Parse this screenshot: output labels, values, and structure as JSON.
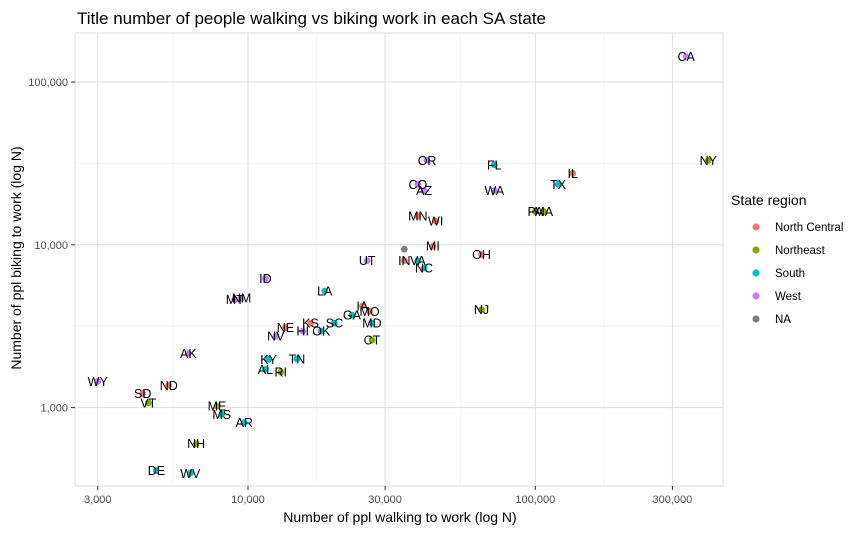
{
  "chart_data": {
    "type": "scatter",
    "title": "Title number of people walking vs biking  work in each SA state",
    "xlabel": "Number of ppl walking to work (log N)",
    "ylabel": "Number of ppl biking to work (log N)",
    "x_scale": "log10",
    "y_scale": "log10",
    "xlim": [
      2500,
      450000
    ],
    "ylim": [
      330,
      200000
    ],
    "x_ticks": [
      3000,
      10000,
      30000,
      100000,
      300000
    ],
    "x_tick_labels": [
      "3,000",
      "10,000",
      "30,000",
      "100,000",
      "300,000"
    ],
    "y_ticks": [
      1000,
      10000,
      100000
    ],
    "y_tick_labels": [
      "1,000",
      "10,000",
      "100,000"
    ],
    "grid": true,
    "legend": {
      "title": "State region",
      "placement": "right",
      "entries": [
        {
          "name": "North Central",
          "color": "#F8766D"
        },
        {
          "name": "Northeast",
          "color": "#7CAE00"
        },
        {
          "name": "South",
          "color": "#00BFC4"
        },
        {
          "name": "West",
          "color": "#C77CFF"
        },
        {
          "name": "NA",
          "color": "#7F7F7F"
        }
      ]
    },
    "points": [
      {
        "label": "CA",
        "region": "West",
        "x": 335000,
        "y": 143000
      },
      {
        "label": "NY",
        "region": "Northeast",
        "x": 400000,
        "y": 33000
      },
      {
        "label": "IL",
        "region": "North Central",
        "x": 135000,
        "y": 27500
      },
      {
        "label": "TX",
        "region": "South",
        "x": 120000,
        "y": 23500
      },
      {
        "label": "FL",
        "region": "South",
        "x": 72000,
        "y": 31000
      },
      {
        "label": "OR",
        "region": "West",
        "x": 42000,
        "y": 33000
      },
      {
        "label": "CO",
        "region": "West",
        "x": 39000,
        "y": 23500
      },
      {
        "label": "AZ",
        "region": "West",
        "x": 41000,
        "y": 21500
      },
      {
        "label": "WA",
        "region": "West",
        "x": 72000,
        "y": 21500
      },
      {
        "label": "PA",
        "region": "Northeast",
        "x": 100000,
        "y": 16000
      },
      {
        "label": "MA",
        "region": "Northeast",
        "x": 107000,
        "y": 16000
      },
      {
        "label": "MN",
        "region": "North Central",
        "x": 39000,
        "y": 15000
      },
      {
        "label": "WI",
        "region": "North Central",
        "x": 45000,
        "y": 14000
      },
      {
        "label": "OH",
        "region": "North Central",
        "x": 65000,
        "y": 8700
      },
      {
        "label": "MI",
        "region": "North Central",
        "x": 44000,
        "y": 9800
      },
      {
        "label": "NA",
        "region": "NA",
        "x": 35000,
        "y": 9400
      },
      {
        "label": "UT",
        "region": "West",
        "x": 26000,
        "y": 8000
      },
      {
        "label": "IN",
        "region": "North Central",
        "x": 35000,
        "y": 8000
      },
      {
        "label": "VA",
        "region": "South",
        "x": 39000,
        "y": 8000
      },
      {
        "label": "NC",
        "region": "South",
        "x": 41000,
        "y": 7200
      },
      {
        "label": "ID",
        "region": "West",
        "x": 11500,
        "y": 6200
      },
      {
        "label": "LA",
        "region": "South",
        "x": 18500,
        "y": 5200
      },
      {
        "label": "MT",
        "region": "West",
        "x": 9000,
        "y": 4600
      },
      {
        "label": "NM",
        "region": "West",
        "x": 9500,
        "y": 4700
      },
      {
        "label": "NJ",
        "region": "Northeast",
        "x": 65000,
        "y": 4000
      },
      {
        "label": "IA",
        "region": "North Central",
        "x": 25000,
        "y": 4200
      },
      {
        "label": "MO",
        "region": "North Central",
        "x": 26500,
        "y": 3900
      },
      {
        "label": "GA",
        "region": "South",
        "x": 23000,
        "y": 3700
      },
      {
        "label": "KS",
        "region": "North Central",
        "x": 16500,
        "y": 3300
      },
      {
        "label": "SC",
        "region": "South",
        "x": 20000,
        "y": 3300
      },
      {
        "label": "MD",
        "region": "South",
        "x": 27000,
        "y": 3300
      },
      {
        "label": "NE",
        "region": "North Central",
        "x": 13500,
        "y": 3100
      },
      {
        "label": "HI",
        "region": "West",
        "x": 15500,
        "y": 2950
      },
      {
        "label": "OK",
        "region": "South",
        "x": 18000,
        "y": 2950
      },
      {
        "label": "NV",
        "region": "West",
        "x": 12500,
        "y": 2750
      },
      {
        "label": "CT",
        "region": "Northeast",
        "x": 27000,
        "y": 2600
      },
      {
        "label": "AK",
        "region": "West",
        "x": 6200,
        "y": 2150
      },
      {
        "label": "KY",
        "region": "South",
        "x": 11800,
        "y": 1980
      },
      {
        "label": "TN",
        "region": "South",
        "x": 14800,
        "y": 1990
      },
      {
        "label": "AL",
        "region": "South",
        "x": 11500,
        "y": 1720
      },
      {
        "label": "RI",
        "region": "Northeast",
        "x": 13000,
        "y": 1650
      },
      {
        "label": "WY",
        "region": "West",
        "x": 3000,
        "y": 1450
      },
      {
        "label": "ND",
        "region": "North Central",
        "x": 5300,
        "y": 1370
      },
      {
        "label": "SD",
        "region": "North Central",
        "x": 4300,
        "y": 1220
      },
      {
        "label": "VT",
        "region": "Northeast",
        "x": 4500,
        "y": 1070
      },
      {
        "label": "ME",
        "region": "Northeast",
        "x": 7800,
        "y": 1020
      },
      {
        "label": "MS",
        "region": "South",
        "x": 8100,
        "y": 910
      },
      {
        "label": "AR",
        "region": "South",
        "x": 9700,
        "y": 810
      },
      {
        "label": "NH",
        "region": "Northeast",
        "x": 6600,
        "y": 600
      },
      {
        "label": "DE",
        "region": "South",
        "x": 4800,
        "y": 410
      },
      {
        "label": "WV",
        "region": "South",
        "x": 6300,
        "y": 395
      }
    ]
  }
}
